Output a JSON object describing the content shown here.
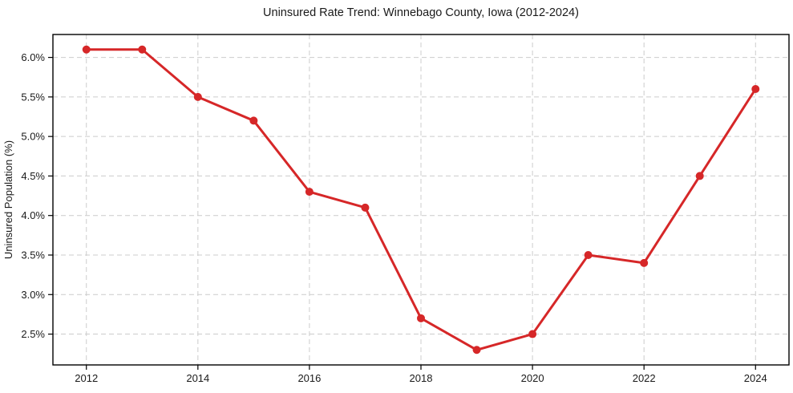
{
  "chart_data": {
    "type": "line",
    "title": "Uninsured Rate Trend: Winnebago County, Iowa (2012-2024)",
    "xlabel": "",
    "ylabel": "Uninsured Population (%)",
    "series": [
      {
        "name": "Uninsured Rate",
        "x": [
          2012,
          2013,
          2014,
          2015,
          2016,
          2017,
          2018,
          2019,
          2020,
          2021,
          2022,
          2023,
          2024
        ],
        "values": [
          6.1,
          6.1,
          5.5,
          5.2,
          4.3,
          4.1,
          2.7,
          2.3,
          2.5,
          3.5,
          3.4,
          4.5,
          5.6
        ]
      }
    ],
    "xlim": [
      2011.4,
      2024.6
    ],
    "ylim": [
      2.11,
      6.29
    ],
    "x_ticks": [
      2012,
      2014,
      2016,
      2018,
      2020,
      2022,
      2024
    ],
    "x_tick_labels": [
      "2012",
      "2014",
      "2016",
      "2018",
      "2020",
      "2022",
      "2024"
    ],
    "y_ticks": [
      2.5,
      3.0,
      3.5,
      4.0,
      4.5,
      5.0,
      5.5,
      6.0
    ],
    "y_tick_labels": [
      "2.5%",
      "3.0%",
      "3.5%",
      "4.0%",
      "4.5%",
      "5.0%",
      "5.5%",
      "6.0%"
    ],
    "grid": true,
    "legend": "none",
    "colors": {
      "line": "#d62728",
      "marker": "#d62728",
      "grid": "#cccccc",
      "spine": "#000000",
      "background": "#ffffff",
      "text": "#1a1a1a"
    },
    "marker_style": "circle",
    "line_width": 3,
    "marker_radius": 5
  }
}
